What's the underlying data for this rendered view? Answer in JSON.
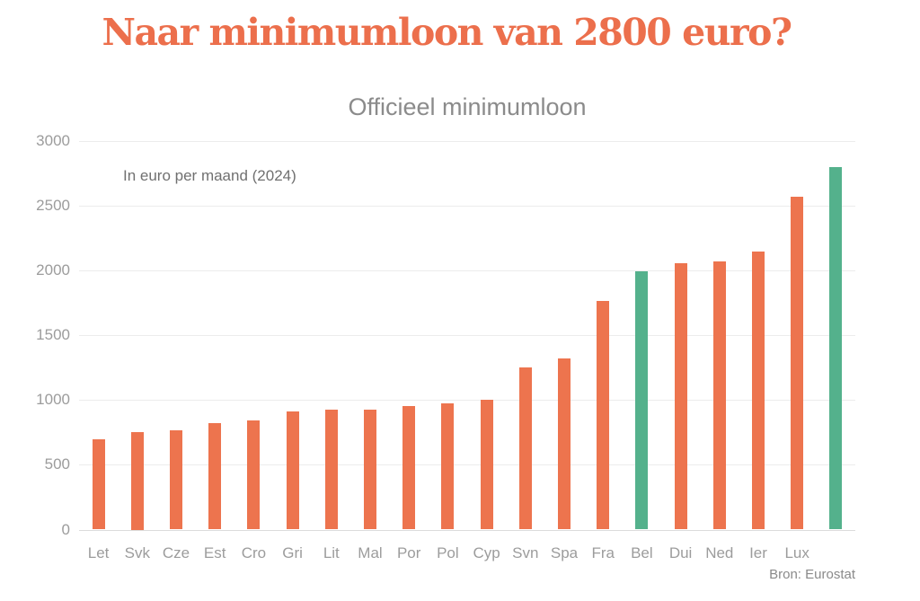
{
  "page": {
    "title": "Naar minimumloon van 2800 euro?",
    "source": "Bron: Eurostat"
  },
  "chart_data": {
    "type": "bar",
    "title": "Officieel minimumloon",
    "annotation": "In euro per maand (2024)",
    "categories": [
      "Let",
      "Svk",
      "Cze",
      "Est",
      "Cro",
      "Gri",
      "Lit",
      "Mal",
      "Por",
      "Pol",
      "Cyp",
      "Svn",
      "Spa",
      "Fra",
      "Bel",
      "Dui",
      "Ned",
      "Ier",
      "Lux",
      ""
    ],
    "values": [
      700,
      750,
      764,
      820,
      840,
      910,
      924,
      925,
      957,
      978,
      1000,
      1254,
      1323,
      1767,
      1994,
      2054,
      2070,
      2146,
      2571,
      2800
    ],
    "highlight_indices": [
      14,
      19
    ],
    "colors": {
      "bar": "#ed744e",
      "highlight": "#54b18c",
      "title": "#ec6f4c"
    },
    "ylim": [
      0,
      3000
    ],
    "yticks": [
      0,
      500,
      1000,
      1500,
      2000,
      2500,
      3000
    ],
    "grid": true,
    "legend": false,
    "xlabel": "",
    "ylabel": ""
  }
}
